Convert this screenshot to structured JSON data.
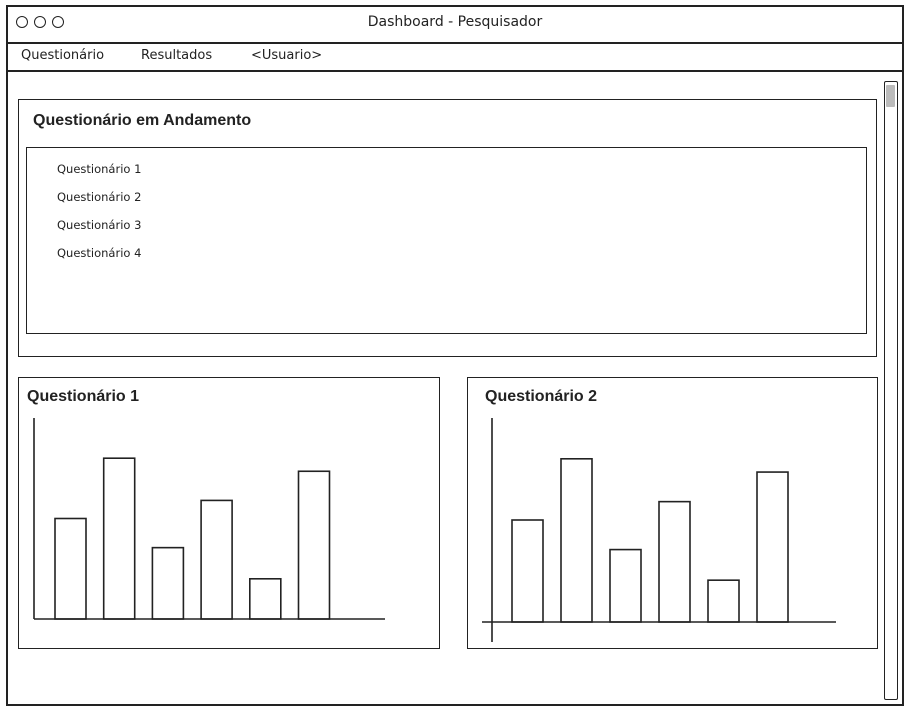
{
  "window": {
    "title": "Dashboard - Pesquisador"
  },
  "menu": {
    "items": [
      "Questionário",
      "Resultados",
      "<Usuario>"
    ]
  },
  "in_progress": {
    "title": "Questionário em Andamento",
    "items": [
      "Questionário 1",
      "Questionário 2",
      "Questionário 3",
      "Questionário 4"
    ]
  },
  "charts": {
    "left_title": "Questionário 1",
    "right_title": "Questionário 2"
  },
  "chart_data": [
    {
      "type": "bar",
      "title": "Questionário 1",
      "categories": [
        "",
        "",
        "",
        "",
        "",
        ""
      ],
      "values": [
        100,
        160,
        71,
        118,
        40,
        147
      ],
      "ylim": [
        0,
        200
      ]
    },
    {
      "type": "bar",
      "title": "Questionário 2",
      "categories": [
        "",
        "",
        "",
        "",
        "",
        ""
      ],
      "values": [
        100,
        160,
        71,
        118,
        41,
        147
      ],
      "ylim": [
        0,
        200
      ]
    }
  ]
}
